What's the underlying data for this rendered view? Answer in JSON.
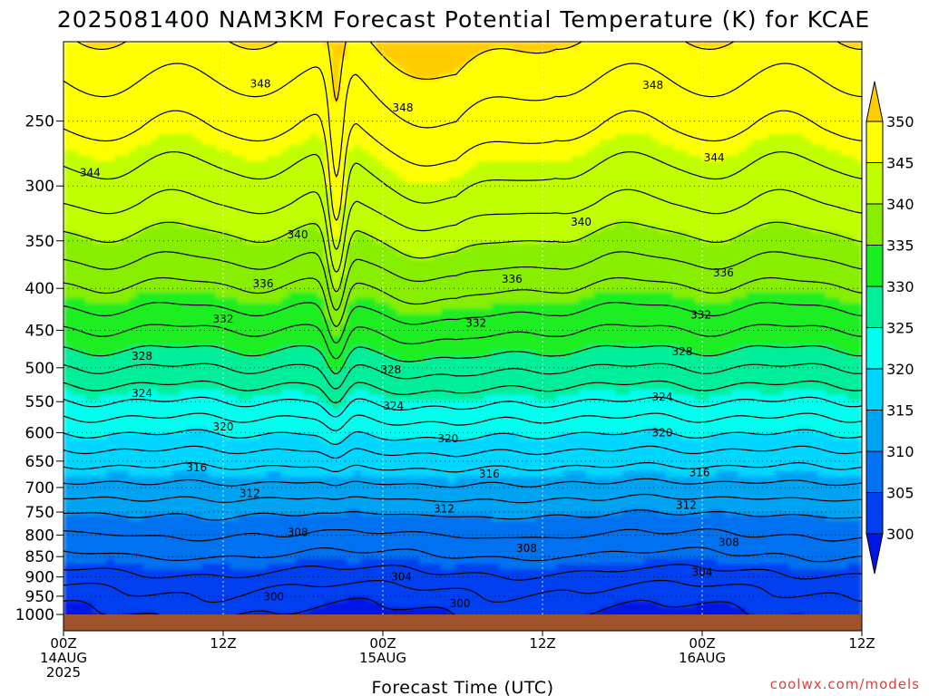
{
  "chart_data": {
    "type": "heatmap",
    "title": "2025081400 NAM3KM Forecast Potential Temperature (K) for KCAE",
    "xlabel": "Forecast Time (UTC)",
    "ylabel": "",
    "credit": "coolwx.com/models",
    "x_range_hours": [
      0,
      60
    ],
    "x_ticks": [
      {
        "hour": 0,
        "lines": [
          "00Z",
          "14AUG",
          "2025"
        ]
      },
      {
        "hour": 12,
        "lines": [
          "12Z"
        ]
      },
      {
        "hour": 24,
        "lines": [
          "00Z",
          "15AUG"
        ]
      },
      {
        "hour": 36,
        "lines": [
          "12Z"
        ]
      },
      {
        "hour": 48,
        "lines": [
          "00Z",
          "16AUG"
        ]
      },
      {
        "hour": 60,
        "lines": [
          "12Z"
        ]
      }
    ],
    "y_axis": {
      "unit": "hPa",
      "log_scale": true,
      "range": [
        1000,
        200
      ],
      "ticks": [
        250,
        300,
        350,
        400,
        450,
        500,
        550,
        600,
        650,
        700,
        750,
        800,
        850,
        900,
        950,
        1000
      ]
    },
    "grid": true,
    "colorbar": {
      "ticks": [
        300,
        305,
        310,
        315,
        320,
        325,
        330,
        335,
        340,
        345,
        350
      ],
      "colors": [
        "#0016e6",
        "#0040f0",
        "#0072f0",
        "#00a3f2",
        "#00d6ff",
        "#00ffee",
        "#00ee99",
        "#1aee22",
        "#88ee00",
        "#bfff00",
        "#ffff00",
        "#ffcc00"
      ],
      "extend": "both",
      "placement": "right"
    },
    "contour_interval": 2,
    "contour_labels": [
      {
        "hour": 14.8,
        "p": 225,
        "value": 348
      },
      {
        "hour": 25.5,
        "p": 241,
        "value": 348
      },
      {
        "hour": 44.3,
        "p": 226,
        "value": 348
      },
      {
        "hour": 2.0,
        "p": 289,
        "value": 344
      },
      {
        "hour": 48.9,
        "p": 277,
        "value": 344
      },
      {
        "hour": 17.6,
        "p": 344,
        "value": 340
      },
      {
        "hour": 38.9,
        "p": 332,
        "value": 340
      },
      {
        "hour": 15.0,
        "p": 395,
        "value": 336
      },
      {
        "hour": 33.7,
        "p": 390,
        "value": 336
      },
      {
        "hour": 49.6,
        "p": 383,
        "value": 336
      },
      {
        "hour": 12.0,
        "p": 436,
        "value": 332
      },
      {
        "hour": 31.0,
        "p": 441,
        "value": 332
      },
      {
        "hour": 47.9,
        "p": 431,
        "value": 332
      },
      {
        "hour": 5.9,
        "p": 484,
        "value": 328
      },
      {
        "hour": 24.6,
        "p": 503,
        "value": 328
      },
      {
        "hour": 46.5,
        "p": 478,
        "value": 328
      },
      {
        "hour": 5.9,
        "p": 537,
        "value": 324
      },
      {
        "hour": 24.8,
        "p": 557,
        "value": 324
      },
      {
        "hour": 45.0,
        "p": 543,
        "value": 324
      },
      {
        "hour": 12.0,
        "p": 590,
        "value": 320
      },
      {
        "hour": 28.9,
        "p": 610,
        "value": 320
      },
      {
        "hour": 45.0,
        "p": 600,
        "value": 320
      },
      {
        "hour": 10.0,
        "p": 662,
        "value": 316
      },
      {
        "hour": 32.0,
        "p": 674,
        "value": 316
      },
      {
        "hour": 47.8,
        "p": 671,
        "value": 316
      },
      {
        "hour": 14.0,
        "p": 712,
        "value": 312
      },
      {
        "hour": 28.6,
        "p": 743,
        "value": 312
      },
      {
        "hour": 46.8,
        "p": 736,
        "value": 312
      },
      {
        "hour": 17.6,
        "p": 794,
        "value": 308
      },
      {
        "hour": 34.8,
        "p": 830,
        "value": 308
      },
      {
        "hour": 50.0,
        "p": 817,
        "value": 308
      },
      {
        "hour": 25.4,
        "p": 900,
        "value": 304
      },
      {
        "hour": 48.0,
        "p": 888,
        "value": 304
      },
      {
        "hour": 15.8,
        "p": 952,
        "value": 300
      },
      {
        "hour": 29.8,
        "p": 970,
        "value": 300
      }
    ]
  }
}
